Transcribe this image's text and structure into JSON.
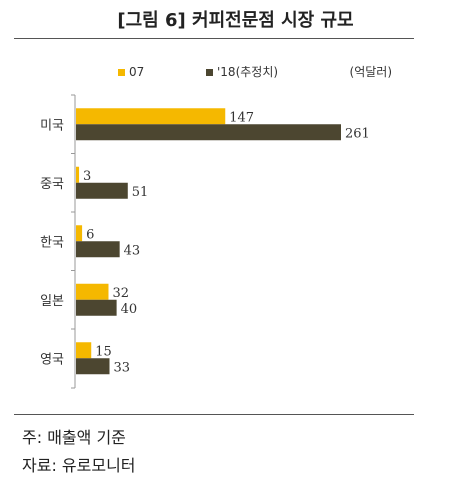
{
  "header": {
    "title": "[그림 6] 커피전문점 시장 규모"
  },
  "colors": {
    "series1": "#f5b800",
    "series2": "#4c4630",
    "axis": "#999999",
    "text": "#333333"
  },
  "chart_data": {
    "type": "bar",
    "orientation": "horizontal",
    "categories": [
      "미국",
      "중국",
      "한국",
      "일본",
      "영국"
    ],
    "series": [
      {
        "name": "07",
        "values": [
          147,
          3,
          6,
          32,
          15
        ]
      },
      {
        "name": "'18(추정치)",
        "values": [
          261,
          51,
          43,
          40,
          33
        ]
      }
    ],
    "unit": "(억달러)",
    "legend": "top",
    "xlim": [
      0,
      265
    ],
    "grid": false
  },
  "footer": {
    "note": "주: 매출액 기준",
    "source": "자료: 유로모니터"
  }
}
